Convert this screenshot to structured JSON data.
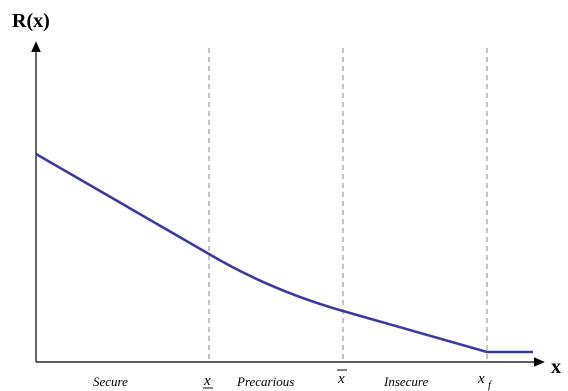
{
  "diagram": {
    "y_axis_title": "R(x)",
    "x_axis_title": "x",
    "regions": [
      {
        "label": "Secure"
      },
      {
        "label": "Precarious"
      },
      {
        "label": "Insecure"
      }
    ],
    "thresholds": [
      {
        "id": "x_low",
        "base": "x",
        "decoration": "underline"
      },
      {
        "id": "x_bar",
        "base": "x",
        "decoration": "overline"
      },
      {
        "id": "x_f",
        "base": "x",
        "subscript": "f"
      }
    ],
    "colors": {
      "curve": "#3a3aa0",
      "axes": "#000000",
      "dashed": "#888888"
    }
  }
}
